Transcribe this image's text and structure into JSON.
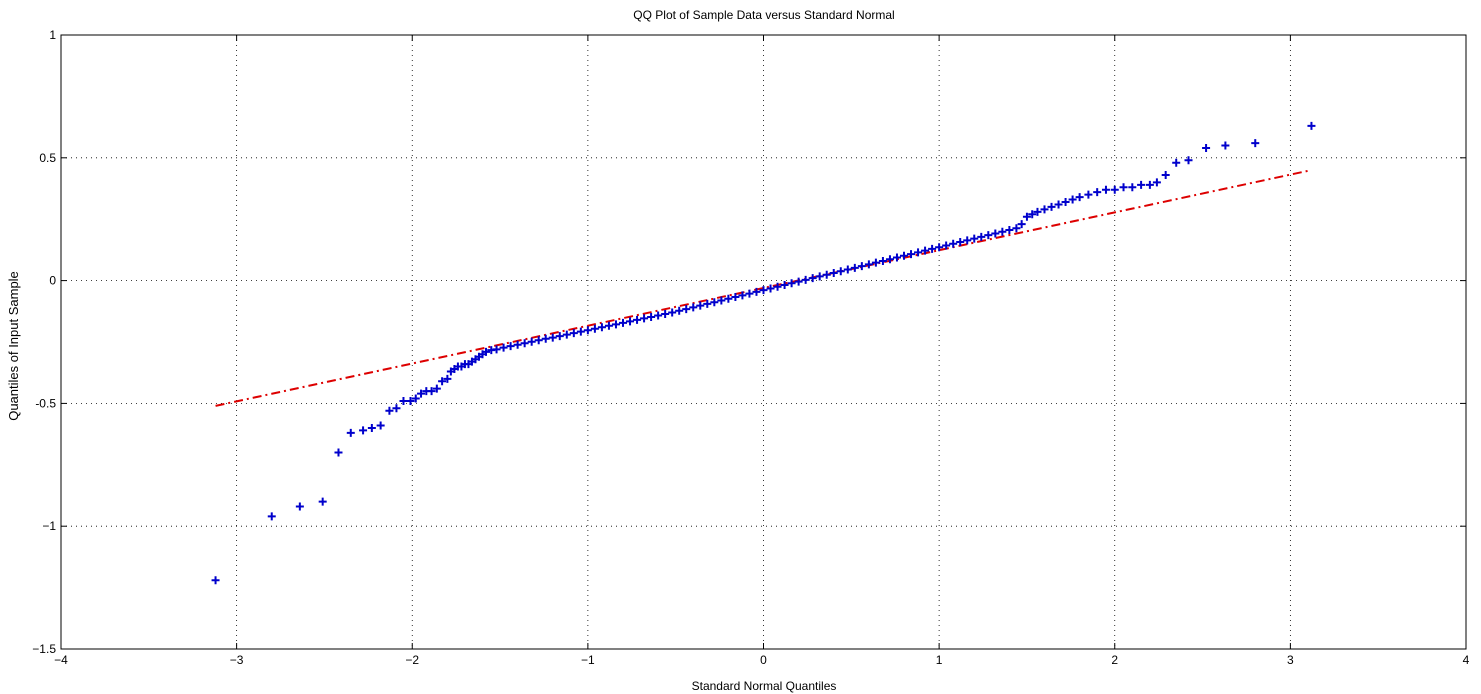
{
  "chart_data": {
    "type": "scatter",
    "title": "QQ Plot of Sample Data versus Standard Normal",
    "xlabel": "Standard Normal Quantiles",
    "ylabel": "Quantiles of Input Sample",
    "xlim": [
      -4,
      4
    ],
    "ylim": [
      -1.5,
      1
    ],
    "xticks": [
      -4,
      -3,
      -2,
      -1,
      0,
      1,
      2,
      3,
      4
    ],
    "xtick_labels": [
      "−4",
      "−3",
      "−2",
      "−1",
      "0",
      "1",
      "2",
      "3",
      "4"
    ],
    "yticks": [
      -1.5,
      -1,
      -0.5,
      0,
      0.5,
      1
    ],
    "ytick_labels": [
      "−1.5",
      "−1",
      "-0.5",
      "0",
      "0.5",
      "1"
    ],
    "grid": true,
    "colors": {
      "points": "#0000cc",
      "reference_line": "#dd0000"
    },
    "reference_line": {
      "x": [
        -3.12,
        3.12
      ],
      "y": [
        -0.51,
        0.45
      ]
    },
    "series": [
      {
        "marker": "+",
        "points": [
          [
            -3.12,
            -1.22
          ],
          [
            -2.8,
            -0.96
          ],
          [
            -2.64,
            -0.92
          ],
          [
            -2.51,
            -0.9
          ],
          [
            -2.42,
            -0.7
          ],
          [
            -2.35,
            -0.62
          ],
          [
            -2.28,
            -0.61
          ],
          [
            -2.23,
            -0.6
          ],
          [
            -2.18,
            -0.59
          ],
          [
            -2.13,
            -0.53
          ],
          [
            -2.09,
            -0.52
          ],
          [
            -2.05,
            -0.49
          ],
          [
            -2.01,
            -0.49
          ],
          [
            -1.98,
            -0.48
          ],
          [
            -1.95,
            -0.46
          ],
          [
            -1.92,
            -0.45
          ],
          [
            -1.89,
            -0.45
          ],
          [
            -1.86,
            -0.44
          ],
          [
            -1.83,
            -0.41
          ],
          [
            -1.8,
            -0.4
          ],
          [
            -1.78,
            -0.37
          ],
          [
            -1.76,
            -0.36
          ],
          [
            -1.74,
            -0.35
          ],
          [
            -1.72,
            -0.35
          ],
          [
            -1.7,
            -0.34
          ],
          [
            -1.68,
            -0.34
          ],
          [
            -1.66,
            -0.33
          ],
          [
            -1.64,
            -0.32
          ],
          [
            -1.62,
            -0.31
          ],
          [
            -1.6,
            -0.3
          ],
          [
            -1.58,
            -0.29
          ],
          [
            -1.55,
            -0.283
          ],
          [
            -1.52,
            -0.28
          ],
          [
            -1.48,
            -0.273
          ],
          [
            -1.44,
            -0.267
          ],
          [
            -1.4,
            -0.261
          ],
          [
            -1.36,
            -0.255
          ],
          [
            -1.32,
            -0.249
          ],
          [
            -1.28,
            -0.243
          ],
          [
            -1.24,
            -0.237
          ],
          [
            -1.2,
            -0.232
          ],
          [
            -1.16,
            -0.226
          ],
          [
            -1.12,
            -0.22
          ],
          [
            -1.08,
            -0.214
          ],
          [
            -1.04,
            -0.208
          ],
          [
            -1.0,
            -0.202
          ],
          [
            -0.96,
            -0.196
          ],
          [
            -0.92,
            -0.19
          ],
          [
            -0.88,
            -0.184
          ],
          [
            -0.84,
            -0.178
          ],
          [
            -0.8,
            -0.172
          ],
          [
            -0.76,
            -0.166
          ],
          [
            -0.72,
            -0.16
          ],
          [
            -0.68,
            -0.154
          ],
          [
            -0.64,
            -0.148
          ],
          [
            -0.6,
            -0.142
          ],
          [
            -0.56,
            -0.136
          ],
          [
            -0.52,
            -0.13
          ],
          [
            -0.48,
            -0.123
          ],
          [
            -0.44,
            -0.116
          ],
          [
            -0.4,
            -0.109
          ],
          [
            -0.36,
            -0.102
          ],
          [
            -0.32,
            -0.095
          ],
          [
            -0.28,
            -0.088
          ],
          [
            -0.24,
            -0.081
          ],
          [
            -0.2,
            -0.074
          ],
          [
            -0.16,
            -0.067
          ],
          [
            -0.12,
            -0.06
          ],
          [
            -0.08,
            -0.053
          ],
          [
            -0.04,
            -0.046
          ],
          [
            0.0,
            -0.039
          ],
          [
            0.04,
            -0.032
          ],
          [
            0.08,
            -0.025
          ],
          [
            0.12,
            -0.018
          ],
          [
            0.16,
            -0.011
          ],
          [
            0.2,
            -0.004
          ],
          [
            0.24,
            0.003
          ],
          [
            0.28,
            0.01
          ],
          [
            0.32,
            0.017
          ],
          [
            0.36,
            0.024
          ],
          [
            0.4,
            0.031
          ],
          [
            0.44,
            0.038
          ],
          [
            0.48,
            0.045
          ],
          [
            0.52,
            0.052
          ],
          [
            0.56,
            0.059
          ],
          [
            0.6,
            0.066
          ],
          [
            0.64,
            0.073
          ],
          [
            0.68,
            0.08
          ],
          [
            0.72,
            0.087
          ],
          [
            0.76,
            0.094
          ],
          [
            0.8,
            0.101
          ],
          [
            0.84,
            0.108
          ],
          [
            0.88,
            0.115
          ],
          [
            0.92,
            0.122
          ],
          [
            0.96,
            0.129
          ],
          [
            1.0,
            0.136
          ],
          [
            1.04,
            0.143
          ],
          [
            1.08,
            0.15
          ],
          [
            1.12,
            0.157
          ],
          [
            1.16,
            0.164
          ],
          [
            1.2,
            0.171
          ],
          [
            1.24,
            0.178
          ],
          [
            1.28,
            0.185
          ],
          [
            1.32,
            0.192
          ],
          [
            1.36,
            0.199
          ],
          [
            1.4,
            0.206
          ],
          [
            1.44,
            0.213
          ],
          [
            1.47,
            0.23
          ],
          [
            1.5,
            0.26
          ],
          [
            1.53,
            0.27
          ],
          [
            1.56,
            0.28
          ],
          [
            1.6,
            0.29
          ],
          [
            1.64,
            0.3
          ],
          [
            1.68,
            0.31
          ],
          [
            1.72,
            0.32
          ],
          [
            1.76,
            0.33
          ],
          [
            1.8,
            0.34
          ],
          [
            1.85,
            0.35
          ],
          [
            1.9,
            0.36
          ],
          [
            1.95,
            0.37
          ],
          [
            2.0,
            0.37
          ],
          [
            2.05,
            0.38
          ],
          [
            2.1,
            0.38
          ],
          [
            2.15,
            0.39
          ],
          [
            2.2,
            0.39
          ],
          [
            2.24,
            0.4
          ],
          [
            2.29,
            0.43
          ],
          [
            2.35,
            0.48
          ],
          [
            2.42,
            0.49
          ],
          [
            2.52,
            0.54
          ],
          [
            2.63,
            0.55
          ],
          [
            2.8,
            0.56
          ],
          [
            3.12,
            0.63
          ]
        ]
      }
    ]
  }
}
